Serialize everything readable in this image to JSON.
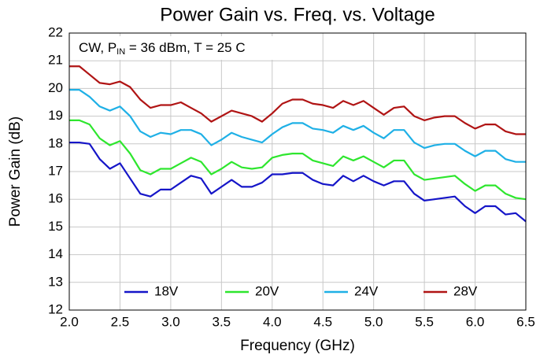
{
  "chart_data": {
    "type": "line",
    "title": "Power Gain vs. Freq. vs. Voltage",
    "x_label": "Frequency (GHz)",
    "y_label": "Power Gain (dB)",
    "annotation": {
      "text": "CW, P",
      "subscript": "IN",
      "text_after": " = 36 dBm, T = 25 C"
    },
    "x": [
      2.0,
      2.1,
      2.2,
      2.3,
      2.4,
      2.5,
      2.6,
      2.7,
      2.8,
      2.9,
      3.0,
      3.1,
      3.2,
      3.3,
      3.4,
      3.5,
      3.6,
      3.7,
      3.8,
      3.9,
      4.0,
      4.1,
      4.2,
      4.3,
      4.4,
      4.5,
      4.6,
      4.7,
      4.8,
      4.9,
      5.0,
      5.1,
      5.2,
      5.3,
      5.4,
      5.5,
      5.6,
      5.7,
      5.8,
      5.9,
      6.0,
      6.1,
      6.2,
      6.3,
      6.4,
      6.5
    ],
    "series": [
      {
        "name": "18V",
        "color": "#1515c8",
        "values": [
          18.05,
          18.05,
          18.0,
          17.45,
          17.1,
          17.3,
          16.75,
          16.2,
          16.1,
          16.35,
          16.35,
          16.6,
          16.85,
          16.75,
          16.2,
          16.45,
          16.7,
          16.45,
          16.45,
          16.6,
          16.9,
          16.9,
          16.95,
          16.95,
          16.7,
          16.55,
          16.5,
          16.85,
          16.65,
          16.85,
          16.65,
          16.5,
          16.65,
          16.65,
          16.2,
          15.95,
          16.0,
          16.05,
          16.1,
          15.75,
          15.5,
          15.75,
          15.75,
          15.45,
          15.5,
          15.2
        ]
      },
      {
        "name": "20V",
        "color": "#2ee62e",
        "values": [
          18.85,
          18.85,
          18.7,
          18.2,
          17.95,
          18.1,
          17.65,
          17.05,
          16.9,
          17.1,
          17.1,
          17.3,
          17.5,
          17.35,
          16.9,
          17.1,
          17.35,
          17.15,
          17.1,
          17.15,
          17.5,
          17.6,
          17.65,
          17.65,
          17.4,
          17.3,
          17.2,
          17.55,
          17.4,
          17.55,
          17.35,
          17.15,
          17.4,
          17.4,
          16.9,
          16.7,
          16.75,
          16.8,
          16.85,
          16.55,
          16.3,
          16.5,
          16.5,
          16.2,
          16.05,
          16.0
        ]
      },
      {
        "name": "24V",
        "color": "#1fb0e6",
        "values": [
          19.95,
          19.95,
          19.7,
          19.35,
          19.2,
          19.35,
          19.0,
          18.45,
          18.25,
          18.4,
          18.35,
          18.5,
          18.5,
          18.35,
          17.95,
          18.15,
          18.4,
          18.25,
          18.15,
          18.05,
          18.35,
          18.6,
          18.75,
          18.75,
          18.55,
          18.5,
          18.4,
          18.65,
          18.5,
          18.65,
          18.4,
          18.2,
          18.5,
          18.5,
          18.05,
          17.85,
          17.95,
          18.0,
          18.0,
          17.75,
          17.55,
          17.75,
          17.75,
          17.45,
          17.35,
          17.35
        ]
      },
      {
        "name": "28V",
        "color": "#b01414",
        "values": [
          20.8,
          20.8,
          20.5,
          20.2,
          20.15,
          20.25,
          20.05,
          19.6,
          19.3,
          19.4,
          19.4,
          19.5,
          19.3,
          19.1,
          18.8,
          19.0,
          19.2,
          19.1,
          19.0,
          18.8,
          19.1,
          19.45,
          19.6,
          19.6,
          19.45,
          19.4,
          19.3,
          19.55,
          19.4,
          19.55,
          19.3,
          19.05,
          19.3,
          19.35,
          19.0,
          18.85,
          18.95,
          19.0,
          19.0,
          18.75,
          18.55,
          18.7,
          18.7,
          18.45,
          18.35,
          18.35
        ]
      }
    ],
    "xlim": [
      2.0,
      6.5
    ],
    "xticks": [
      {
        "value": 2,
        "label": "2.0"
      },
      2.5,
      {
        "value": 3,
        "label": "3.0"
      },
      3.5,
      {
        "value": 4,
        "label": "4.0"
      },
      4.5,
      {
        "value": 5,
        "label": "5.0"
      },
      5.5,
      {
        "value": 6,
        "label": "6.0"
      },
      6.5
    ],
    "ylim": [
      12,
      22
    ],
    "yticks": [
      12,
      13,
      14,
      15,
      16,
      17,
      18,
      19,
      20,
      21,
      22
    ],
    "grid": true,
    "legend": "bottom"
  }
}
